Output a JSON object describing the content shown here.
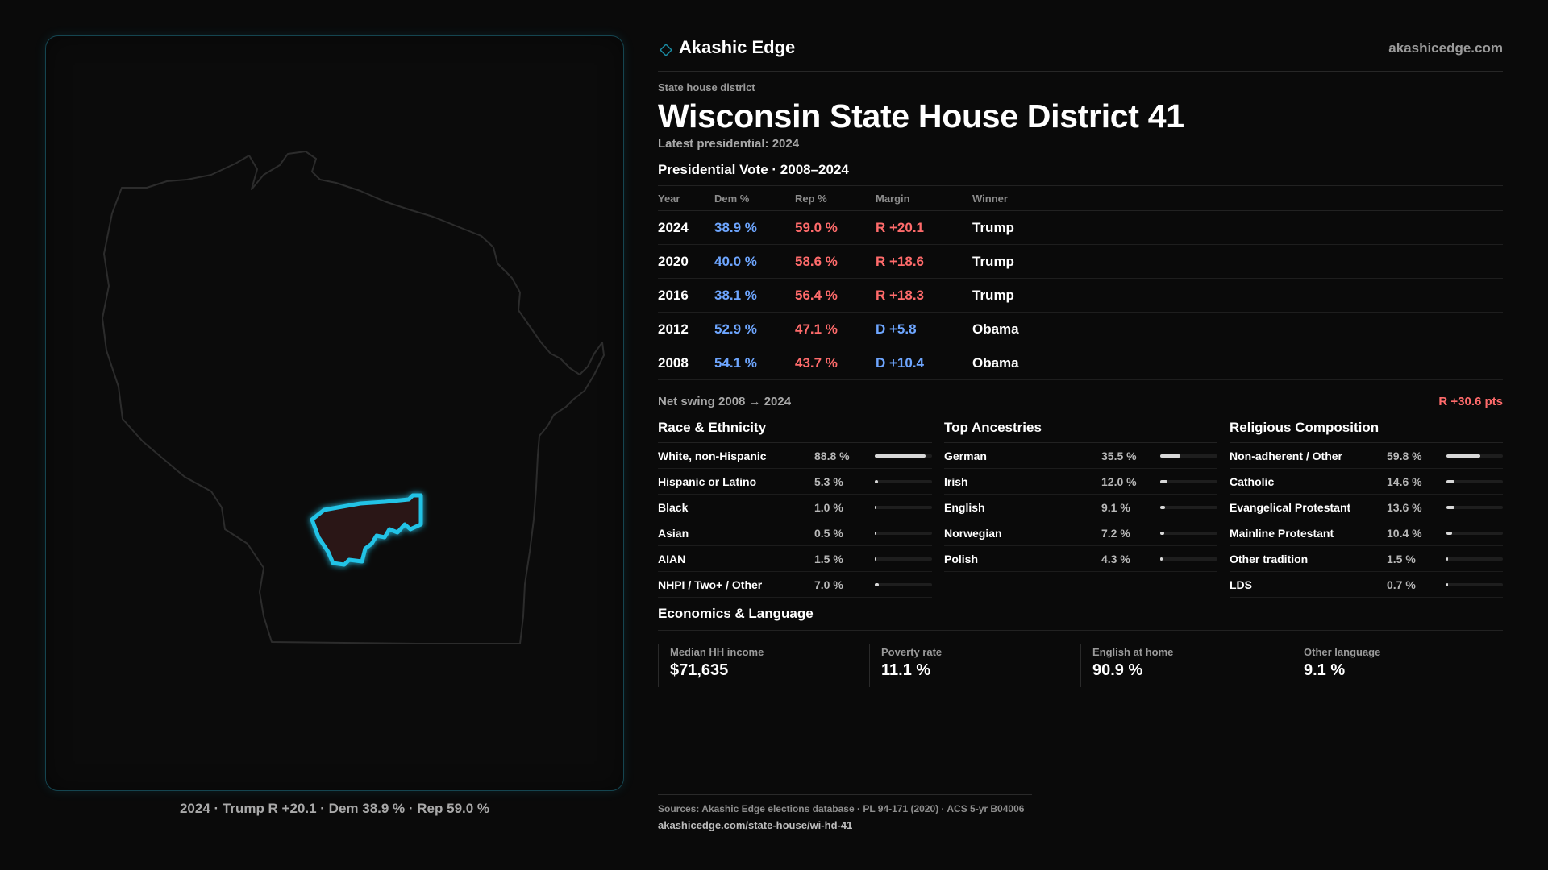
{
  "header": {
    "brand": "Akashic Edge",
    "site": "akashicedge.com",
    "logo_icon": "diamond-icon",
    "accent_color": "#22c3e6"
  },
  "district": {
    "kicker": "State house district",
    "title": "Wisconsin State House District 41",
    "latest": "Latest presidential: 2024"
  },
  "presidential": {
    "title": "Presidential Vote · 2008–2024",
    "columns": {
      "year": "Year",
      "dem": "Dem %",
      "rep": "Rep %",
      "margin": "Margin",
      "winner": "Winner"
    },
    "rows": [
      {
        "year": "2024",
        "dem": "38.9 %",
        "rep": "59.0 %",
        "margin": "R +20.1",
        "winner": "Trump",
        "party": "rep"
      },
      {
        "year": "2020",
        "dem": "40.0 %",
        "rep": "58.6 %",
        "margin": "R +18.6",
        "winner": "Trump",
        "party": "rep"
      },
      {
        "year": "2016",
        "dem": "38.1 %",
        "rep": "56.4 %",
        "margin": "R +18.3",
        "winner": "Trump",
        "party": "rep"
      },
      {
        "year": "2012",
        "dem": "52.9 %",
        "rep": "47.1 %",
        "margin": "D +5.8",
        "winner": "Obama",
        "party": "dem"
      },
      {
        "year": "2008",
        "dem": "54.1 %",
        "rep": "43.7 %",
        "margin": "D +10.4",
        "winner": "Obama",
        "party": "dem"
      }
    ],
    "colors": {
      "dem": "#6ea6ff",
      "rep": "#ff6b6b"
    }
  },
  "swing": {
    "label": "Net swing 2008 → 2024",
    "value": "R +30.6 pts"
  },
  "race": {
    "title": "Race & Ethnicity",
    "items": [
      {
        "label": "White, non-Hispanic",
        "value": "88.8 %",
        "share": 0.888
      },
      {
        "label": "Hispanic or Latino",
        "value": "5.3 %",
        "share": 0.053
      },
      {
        "label": "Black",
        "value": "1.0 %",
        "share": 0.01
      },
      {
        "label": "Asian",
        "value": "0.5 %",
        "share": 0.005
      },
      {
        "label": "AIAN",
        "value": "1.5 %",
        "share": 0.015
      },
      {
        "label": "NHPI / Two+ / Other",
        "value": "7.0 %",
        "share": 0.07
      }
    ]
  },
  "ancestry": {
    "title": "Top Ancestries",
    "items": [
      {
        "label": "German",
        "value": "35.5 %",
        "share": 0.355
      },
      {
        "label": "Irish",
        "value": "12.0 %",
        "share": 0.12
      },
      {
        "label": "English",
        "value": "9.1 %",
        "share": 0.091
      },
      {
        "label": "Norwegian",
        "value": "7.2 %",
        "share": 0.072
      },
      {
        "label": "Polish",
        "value": "4.3 %",
        "share": 0.043
      }
    ]
  },
  "religion": {
    "title": "Religious Composition",
    "items": [
      {
        "label": "Non-adherent / Other",
        "value": "59.8 %",
        "share": 0.598
      },
      {
        "label": "Catholic",
        "value": "14.6 %",
        "share": 0.146
      },
      {
        "label": "Evangelical Protestant",
        "value": "13.6 %",
        "share": 0.136
      },
      {
        "label": "Mainline Protestant",
        "value": "10.4 %",
        "share": 0.104
      },
      {
        "label": "Other tradition",
        "value": "1.5 %",
        "share": 0.015
      },
      {
        "label": "LDS",
        "value": "0.7 %",
        "share": 0.007
      }
    ]
  },
  "economics": {
    "title": "Economics & Language",
    "metrics": [
      {
        "label": "Median HH income",
        "value": "$71,635"
      },
      {
        "label": "Poverty rate",
        "value": "11.1 %"
      },
      {
        "label": "English at home",
        "value": "90.9 %"
      },
      {
        "label": "Other language",
        "value": "9.1 %"
      }
    ]
  },
  "map": {
    "caption": "2024 · Trump R +20.1 · Dem 38.9 % · Rep 59.0 %",
    "state_outline_color": "#2c2c2c",
    "district_color": "#22c3e6"
  },
  "sources": {
    "line": "Sources: Akashic Edge elections database · PL 94-171 (2020) · ACS 5-yr B04006",
    "url": "akashicedge.com/state-house/wi-hd-41"
  }
}
